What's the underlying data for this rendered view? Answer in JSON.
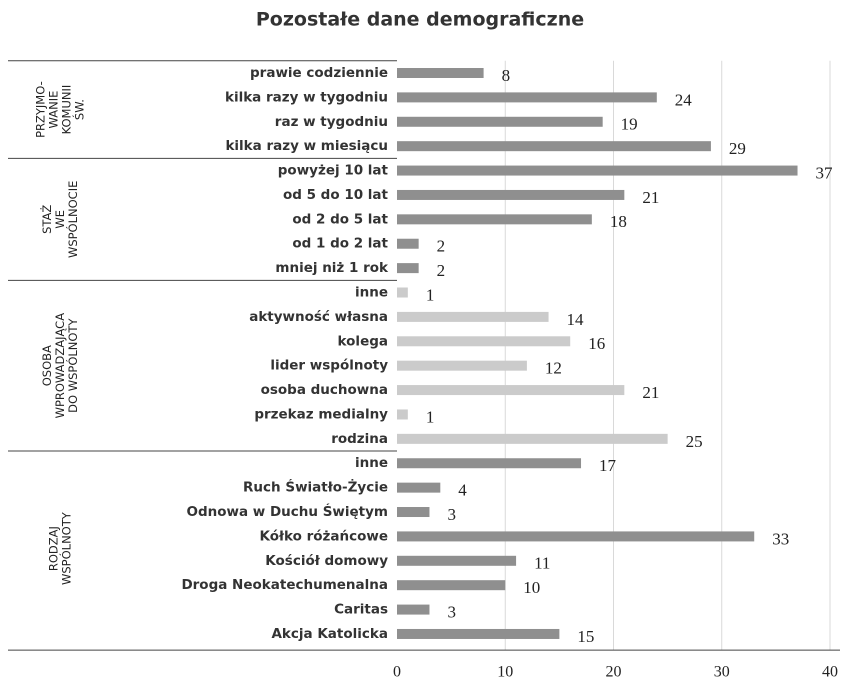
{
  "chart_data": {
    "type": "bar",
    "orientation": "horizontal",
    "title": "Pozostałe dane demograficzne",
    "xlim": [
      0,
      40
    ],
    "xticks": [
      0,
      10,
      20,
      30,
      40
    ],
    "grid": true,
    "groups": [
      {
        "label": [
          "PRZYJMO-",
          "WANIE",
          "KOMUNII",
          "ŚW."
        ],
        "color": "#8f8f8f",
        "categories": [
          "prawie codziennie",
          "kilka razy w tygodniu",
          "raz w tygodniu",
          "kilka razy w miesiącu"
        ],
        "values": [
          8,
          24,
          19,
          29
        ]
      },
      {
        "label": [
          "STAŻ",
          "WE",
          "WSPÓLNOCIE"
        ],
        "color": "#8f8f8f",
        "categories": [
          "powyżej 10 lat",
          "od 5 do 10 lat",
          "od 2 do 5 lat",
          "od 1 do 2 lat",
          "mniej niż 1 rok"
        ],
        "values": [
          37,
          21,
          18,
          2,
          2
        ]
      },
      {
        "label": [
          "OSOBA",
          "WPROWADZAJĄCA",
          "DO WSPÓLNOTY"
        ],
        "color": "#cbcbcb",
        "categories": [
          "inne",
          "aktywność własna",
          "kolega",
          "lider wspólnoty",
          "osoba duchowna",
          "przekaz medialny",
          "rodzina"
        ],
        "values": [
          1,
          14,
          16,
          12,
          21,
          1,
          25
        ]
      },
      {
        "label": [
          "RODZAJ",
          "WSPÓLNOTY"
        ],
        "color": "#8f8f8f",
        "categories": [
          "inne",
          "Ruch Światło-Życie",
          "Odnowa w Duchu Świętym",
          "Kółko różańcowe",
          "Kościół domowy",
          "Droga Neokatechumenalna",
          "Caritas",
          "Akcja Katolicka"
        ],
        "values": [
          17,
          4,
          3,
          33,
          11,
          10,
          3,
          15
        ]
      }
    ]
  }
}
